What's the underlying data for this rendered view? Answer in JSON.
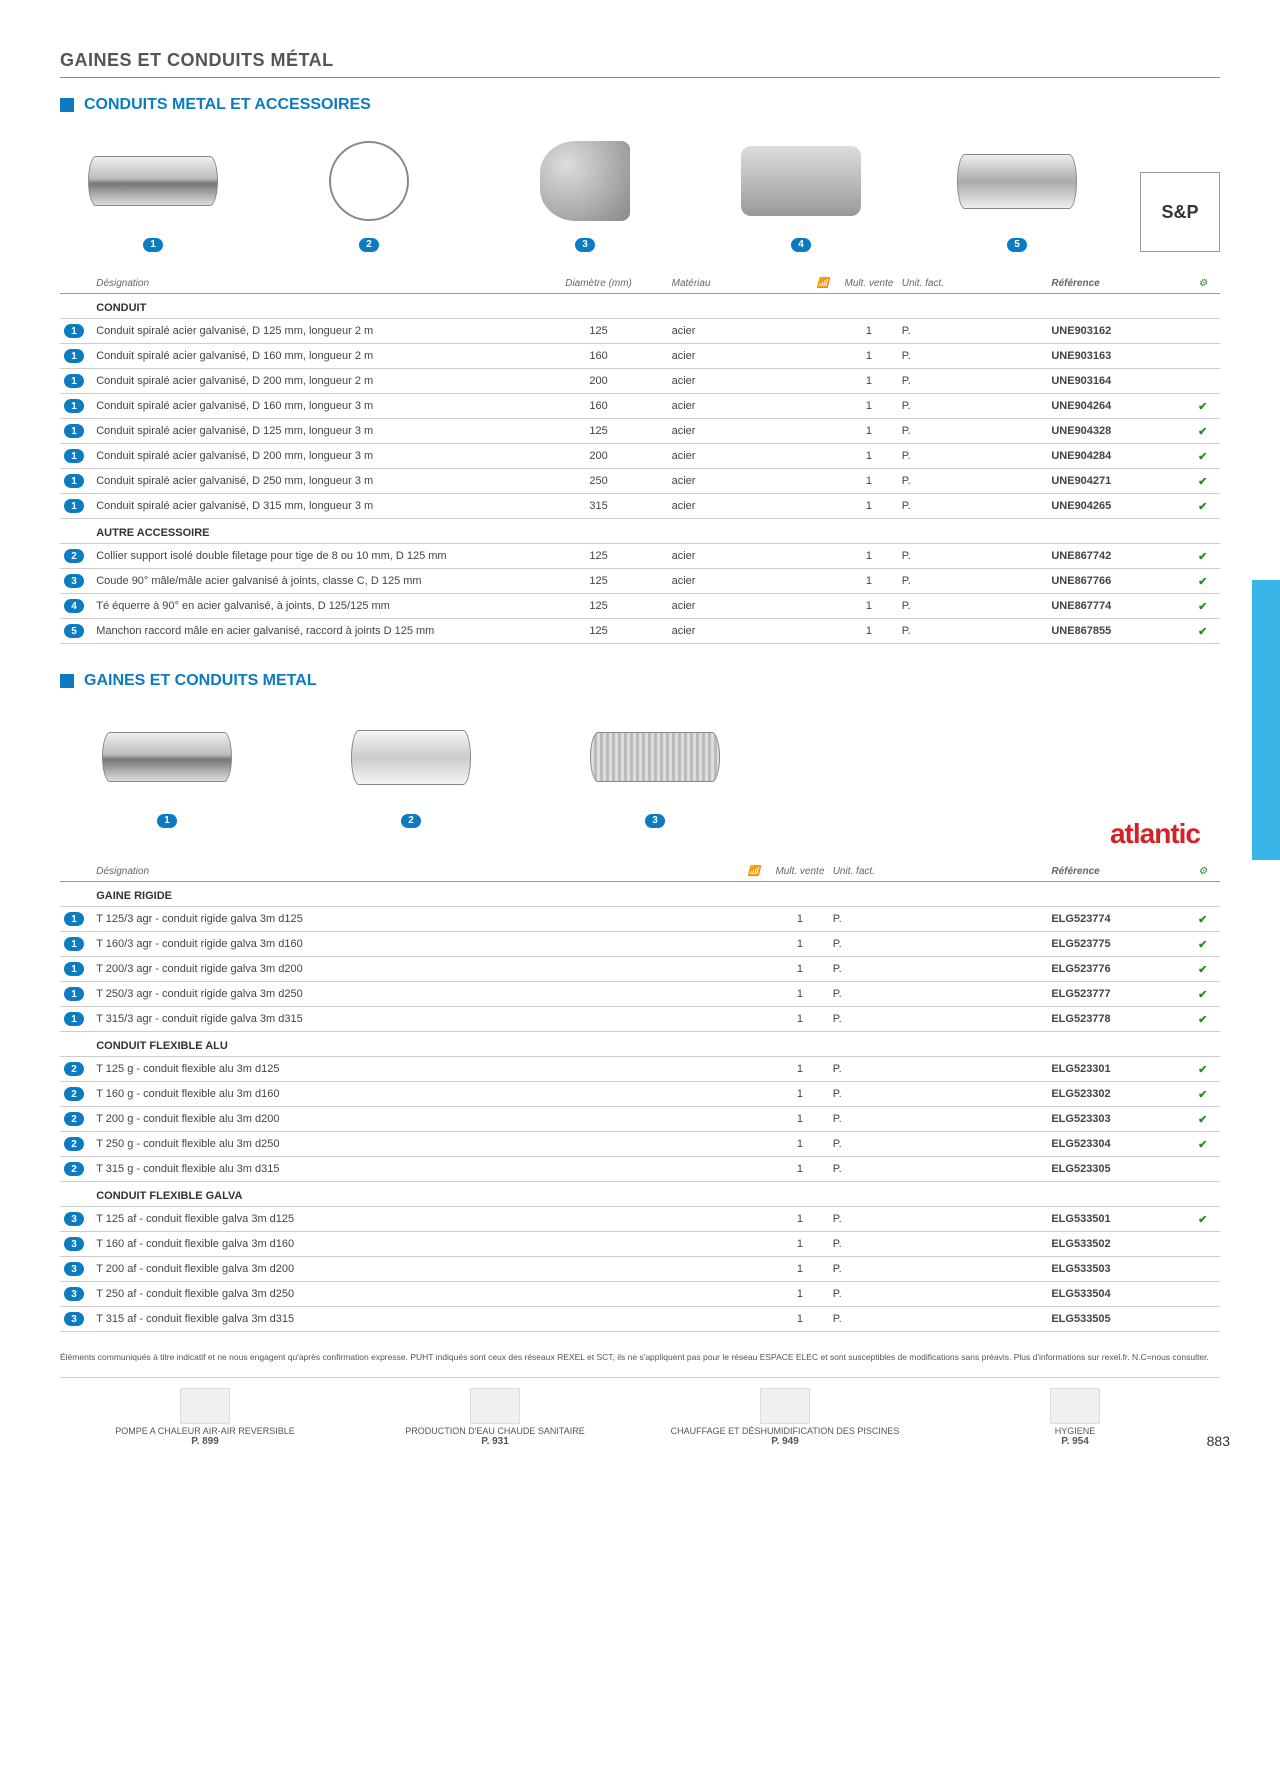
{
  "pageTitle": "GAINES ET CONDUITS MÉTAL",
  "section1": {
    "title": "CONDUITS METAL ET ACCESSOIRES",
    "brand": "S&P",
    "productBadges": [
      "1",
      "2",
      "3",
      "4",
      "5"
    ],
    "columns": {
      "designation": "Désignation",
      "diametre": "Diamètre (mm)",
      "materiau": "Matériau",
      "mult": "Mult. vente",
      "unit": "Unit. fact.",
      "reference": "Référence"
    },
    "groups": [
      {
        "name": "CONDUIT",
        "rows": [
          {
            "b": "1",
            "d": "Conduit spiralé acier galvanisé, D 125 mm, longueur 2 m",
            "diam": "125",
            "mat": "acier",
            "mult": "1",
            "unit": "P.",
            "ref": "UNE903162",
            "ck": ""
          },
          {
            "b": "1",
            "d": "Conduit spiralé acier galvanisé, D 160 mm, longueur 2 m",
            "diam": "160",
            "mat": "acier",
            "mult": "1",
            "unit": "P.",
            "ref": "UNE903163",
            "ck": ""
          },
          {
            "b": "1",
            "d": "Conduit spiralé acier galvanisé, D 200 mm, longueur 2 m",
            "diam": "200",
            "mat": "acier",
            "mult": "1",
            "unit": "P.",
            "ref": "UNE903164",
            "ck": ""
          },
          {
            "b": "1",
            "d": "Conduit spiralé acier galvanisé, D 160 mm, longueur 3 m",
            "diam": "160",
            "mat": "acier",
            "mult": "1",
            "unit": "P.",
            "ref": "UNE904264",
            "ck": "✔"
          },
          {
            "b": "1",
            "d": "Conduit spiralé acier galvanisé, D 125 mm, longueur 3 m",
            "diam": "125",
            "mat": "acier",
            "mult": "1",
            "unit": "P.",
            "ref": "UNE904328",
            "ck": "✔"
          },
          {
            "b": "1",
            "d": "Conduit spiralé acier galvanisé, D 200 mm, longueur 3 m",
            "diam": "200",
            "mat": "acier",
            "mult": "1",
            "unit": "P.",
            "ref": "UNE904284",
            "ck": "✔"
          },
          {
            "b": "1",
            "d": "Conduit spiralé acier galvanisé, D 250 mm, longueur 3 m",
            "diam": "250",
            "mat": "acier",
            "mult": "1",
            "unit": "P.",
            "ref": "UNE904271",
            "ck": "✔"
          },
          {
            "b": "1",
            "d": "Conduit spiralé acier galvanisé, D 315 mm, longueur 3 m",
            "diam": "315",
            "mat": "acier",
            "mult": "1",
            "unit": "P.",
            "ref": "UNE904265",
            "ck": "✔"
          }
        ]
      },
      {
        "name": "AUTRE ACCESSOIRE",
        "rows": [
          {
            "b": "2",
            "d": "Collier support isolé double filetage pour tige de 8 ou 10 mm, D 125 mm",
            "diam": "125",
            "mat": "acier",
            "mult": "1",
            "unit": "P.",
            "ref": "UNE867742",
            "ck": "✔"
          },
          {
            "b": "3",
            "d": "Coude 90° mâle/mâle acier galvanisé à joints, classe C, D 125 mm",
            "diam": "125",
            "mat": "acier",
            "mult": "1",
            "unit": "P.",
            "ref": "UNE867766",
            "ck": "✔"
          },
          {
            "b": "4",
            "d": "Té équerre à 90° en acier galvanisé, à joints, D 125/125 mm",
            "diam": "125",
            "mat": "acier",
            "mult": "1",
            "unit": "P.",
            "ref": "UNE867774",
            "ck": "✔"
          },
          {
            "b": "5",
            "d": "Manchon raccord mâle en acier galvanisé, raccord à joints D 125 mm",
            "diam": "125",
            "mat": "acier",
            "mult": "1",
            "unit": "P.",
            "ref": "UNE867855",
            "ck": "✔"
          }
        ]
      }
    ]
  },
  "section2": {
    "title": "GAINES ET CONDUITS METAL",
    "brand": "atlantic",
    "productBadges": [
      "1",
      "2",
      "3"
    ],
    "columns": {
      "designation": "Désignation",
      "mult": "Mult. vente",
      "unit": "Unit. fact.",
      "reference": "Référence"
    },
    "groups": [
      {
        "name": "GAINE RIGIDE",
        "rows": [
          {
            "b": "1",
            "d": "T 125/3 agr - conduit rigide galva 3m d125",
            "mult": "1",
            "unit": "P.",
            "ref": "ELG523774",
            "ck": "✔"
          },
          {
            "b": "1",
            "d": "T 160/3 agr - conduit rigide galva 3m d160",
            "mult": "1",
            "unit": "P.",
            "ref": "ELG523775",
            "ck": "✔"
          },
          {
            "b": "1",
            "d": "T 200/3 agr - conduit rigide galva 3m d200",
            "mult": "1",
            "unit": "P.",
            "ref": "ELG523776",
            "ck": "✔"
          },
          {
            "b": "1",
            "d": "T 250/3 agr - conduit rigide galva 3m d250",
            "mult": "1",
            "unit": "P.",
            "ref": "ELG523777",
            "ck": "✔"
          },
          {
            "b": "1",
            "d": "T 315/3 agr - conduit rigide galva 3m d315",
            "mult": "1",
            "unit": "P.",
            "ref": "ELG523778",
            "ck": "✔"
          }
        ]
      },
      {
        "name": "CONDUIT FLEXIBLE ALU",
        "rows": [
          {
            "b": "2",
            "d": "T 125 g - conduit flexible alu 3m d125",
            "mult": "1",
            "unit": "P.",
            "ref": "ELG523301",
            "ck": "✔"
          },
          {
            "b": "2",
            "d": "T 160 g - conduit flexible alu 3m d160",
            "mult": "1",
            "unit": "P.",
            "ref": "ELG523302",
            "ck": "✔"
          },
          {
            "b": "2",
            "d": "T 200 g - conduit flexible alu 3m d200",
            "mult": "1",
            "unit": "P.",
            "ref": "ELG523303",
            "ck": "✔"
          },
          {
            "b": "2",
            "d": "T 250 g - conduit flexible alu 3m d250",
            "mult": "1",
            "unit": "P.",
            "ref": "ELG523304",
            "ck": "✔"
          },
          {
            "b": "2",
            "d": "T 315 g - conduit flexible alu 3m d315",
            "mult": "1",
            "unit": "P.",
            "ref": "ELG523305",
            "ck": ""
          }
        ]
      },
      {
        "name": "CONDUIT FLEXIBLE GALVA",
        "rows": [
          {
            "b": "3",
            "d": "T 125 af - conduit flexible galva 3m d125",
            "mult": "1",
            "unit": "P.",
            "ref": "ELG533501",
            "ck": "✔"
          },
          {
            "b": "3",
            "d": "T 160 af - conduit flexible galva 3m d160",
            "mult": "1",
            "unit": "P.",
            "ref": "ELG533502",
            "ck": ""
          },
          {
            "b": "3",
            "d": "T 200 af - conduit flexible galva 3m d200",
            "mult": "1",
            "unit": "P.",
            "ref": "ELG533503",
            "ck": ""
          },
          {
            "b": "3",
            "d": "T 250 af - conduit flexible galva 3m d250",
            "mult": "1",
            "unit": "P.",
            "ref": "ELG533504",
            "ck": ""
          },
          {
            "b": "3",
            "d": "T 315 af - conduit flexible galva 3m d315",
            "mult": "1",
            "unit": "P.",
            "ref": "ELG533505",
            "ck": ""
          }
        ]
      }
    ]
  },
  "footerNote": "Éléments communiqués à titre indicatif et ne nous engagent qu'après confirmation expresse. PUHT indiqués sont ceux des réseaux REXEL et SCT, ils ne s'appliquent pas pour le réseau ESPACE ELEC et sont susceptibles de modifications sans préavis. Plus d'informations sur rexel.fr. N.C=nous consulter.",
  "footerLinks": [
    {
      "label": "POMPE A CHALEUR AIR-AIR REVERSIBLE",
      "page": "P. 899"
    },
    {
      "label": "PRODUCTION D'EAU CHAUDE SANITAIRE",
      "page": "P. 931"
    },
    {
      "label": "CHAUFFAGE ET DÉSHUMIDIFICATION DES PISCINES",
      "page": "P. 949"
    },
    {
      "label": "HYGIENE",
      "page": "P. 954"
    }
  ],
  "pageNumber": "883"
}
